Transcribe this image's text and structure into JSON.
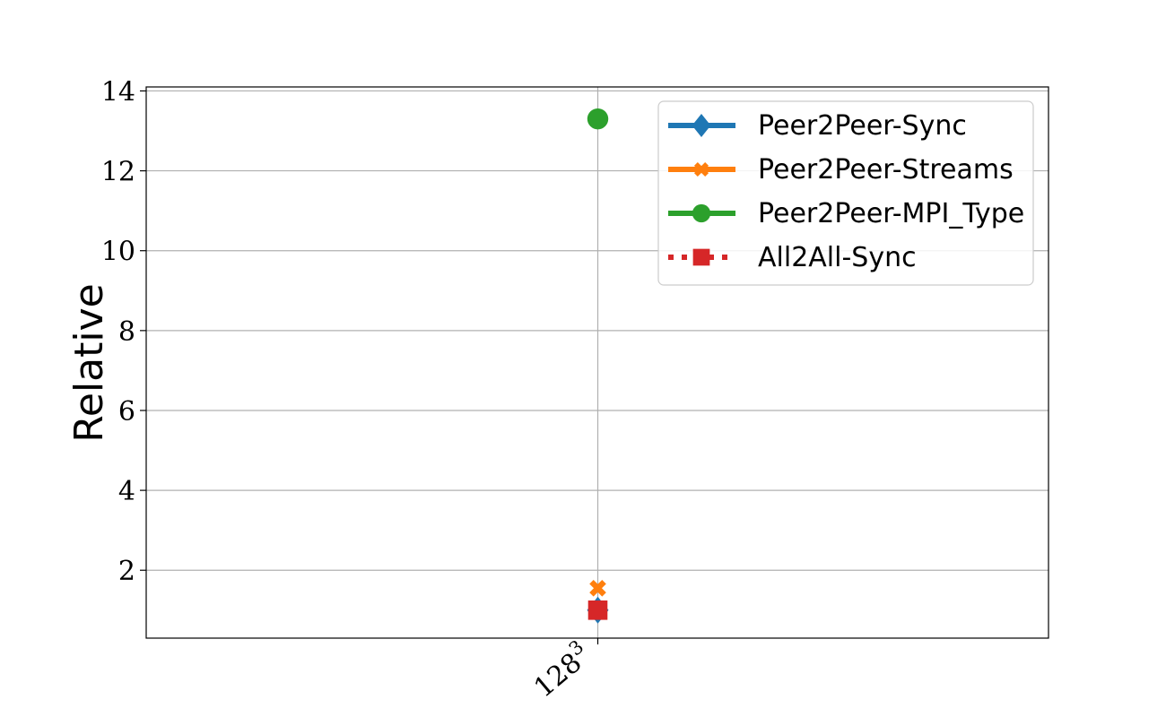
{
  "chart_data": {
    "type": "scatter",
    "title": "",
    "xlabel": "",
    "ylabel": "Relative",
    "categories": [
      "128",
      "3"
    ],
    "x_tick_base": "128",
    "x_tick_exp": "3",
    "ylim": [
      0.3,
      14.1
    ],
    "yticks": [
      2,
      4,
      6,
      8,
      10,
      12,
      14
    ],
    "grid": true,
    "legend_position": "top-right",
    "series": [
      {
        "name": "Peer2Peer-Sync",
        "values": [
          1.0
        ],
        "color": "#1f77b4",
        "marker": "diamond",
        "line": "solid"
      },
      {
        "name": "Peer2Peer-Streams",
        "values": [
          1.55
        ],
        "color": "#ff7f0e",
        "marker": "x",
        "line": "solid"
      },
      {
        "name": "Peer2Peer-MPI_Type",
        "values": [
          13.3
        ],
        "color": "#2ca02c",
        "marker": "circle",
        "line": "solid"
      },
      {
        "name": "All2All-Sync",
        "values": [
          1.0
        ],
        "color": "#d62728",
        "marker": "square",
        "line": "dotted"
      }
    ]
  }
}
